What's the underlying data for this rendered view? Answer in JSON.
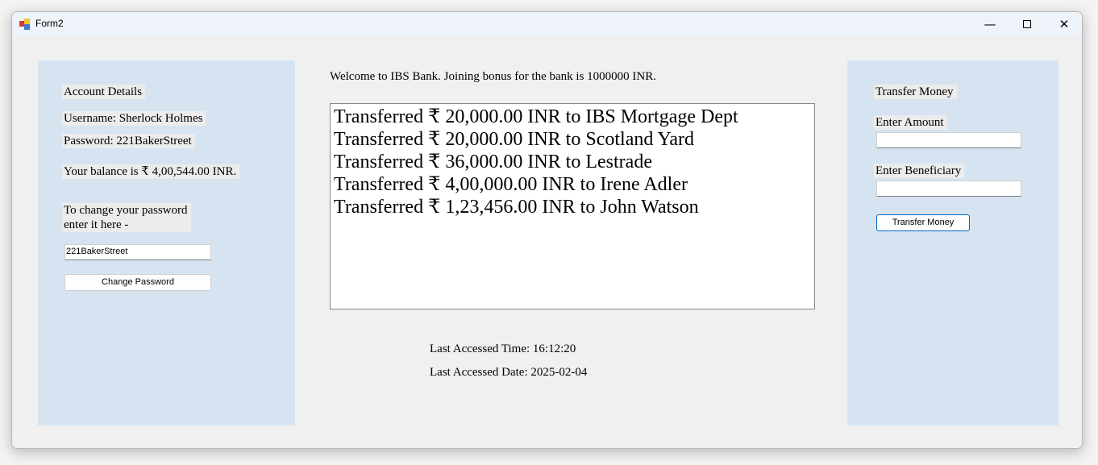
{
  "window": {
    "title": "Form2"
  },
  "account": {
    "heading": "Account Details",
    "username": "Username: Sherlock Holmes",
    "password": "Password: 221BakerStreet",
    "balance": "Your balance is ₹ 4,00,544.00 INR.",
    "change_prompt_line1": "To change your password",
    "change_prompt_line2": "enter it here -",
    "password_input_value": "221BakerStreet",
    "change_button": "Change Password"
  },
  "main": {
    "welcome": "Welcome to IBS Bank. Joining bonus for the bank is 1000000 INR.",
    "transactions": [
      "Transferred ₹ 20,000.00 INR to IBS Mortgage Dept",
      "Transferred ₹ 20,000.00 INR to Scotland Yard",
      "Transferred ₹ 36,000.00 INR to Lestrade",
      "Transferred ₹ 4,00,000.00 INR to Irene Adler",
      "Transferred ₹ 1,23,456.00 INR to John Watson"
    ],
    "last_time": "Last Accessed Time: 16:12:20",
    "last_date": "Last Accessed Date: 2025-02-04"
  },
  "transfer": {
    "heading": "Transfer Money",
    "amount_label": "Enter Amount",
    "amount_value": "",
    "beneficiary_label": "Enter Beneficiary",
    "beneficiary_value": "",
    "button": "Transfer Money"
  },
  "colors": {
    "panel": "#d6e4f2",
    "titlebar": "#eef2f9",
    "accent_border": "#0067c0"
  }
}
